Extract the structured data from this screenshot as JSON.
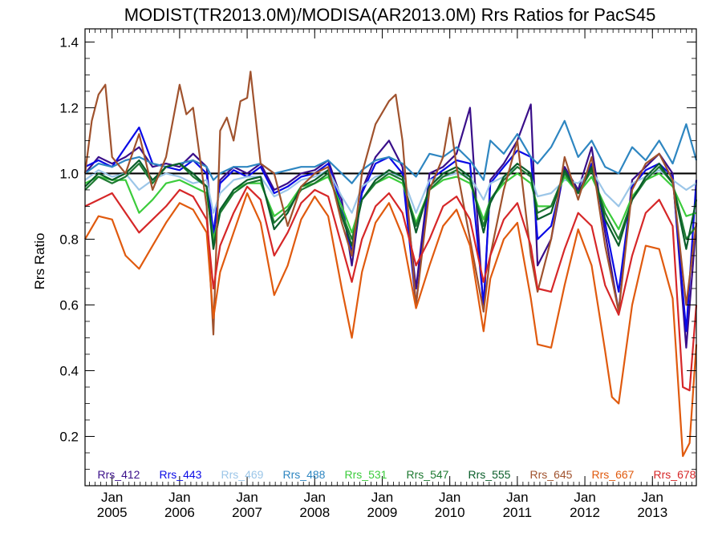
{
  "chart_data": {
    "type": "line",
    "title": "MODIST(TR2013.0M)/MODISA(AR2013.0M)  Rrs Ratios for PacS45",
    "ylabel": "Rrs Ratio",
    "xlabel": "",
    "ylim": [
      0.05,
      1.44
    ],
    "xlim": [
      2004.6,
      2013.65
    ],
    "y_ticks": [
      "0.2",
      "0.4",
      "0.6",
      "0.8",
      "1.0",
      "1.2",
      "1.4"
    ],
    "x_ticks": [
      {
        "month": "Jan",
        "year": "2005"
      },
      {
        "month": "Jan",
        "year": "2006"
      },
      {
        "month": "Jan",
        "year": "2007"
      },
      {
        "month": "Jan",
        "year": "2008"
      },
      {
        "month": "Jan",
        "year": "2009"
      },
      {
        "month": "Jan",
        "year": "2010"
      },
      {
        "month": "Jan",
        "year": "2011"
      },
      {
        "month": "Jan",
        "year": "2012"
      },
      {
        "month": "Jan",
        "year": "2013"
      }
    ],
    "reference_line": 1.0,
    "legend_position": "bottom",
    "series": [
      {
        "name": "Rrs_412",
        "color": "#3a0f8a",
        "x": [
          2004.6,
          2004.8,
          2005.0,
          2005.2,
          2005.4,
          2005.6,
          2005.8,
          2006.0,
          2006.2,
          2006.4,
          2006.5,
          2006.6,
          2006.8,
          2007.0,
          2007.2,
          2007.4,
          2007.6,
          2007.8,
          2008.0,
          2008.2,
          2008.4,
          2008.55,
          2008.7,
          2008.9,
          2009.1,
          2009.3,
          2009.5,
          2009.7,
          2009.9,
          2010.1,
          2010.3,
          2010.5,
          2010.6,
          2010.8,
          2011.0,
          2011.2,
          2011.3,
          2011.5,
          2011.7,
          2011.9,
          2012.1,
          2012.3,
          2012.5,
          2012.7,
          2012.9,
          2013.1,
          2013.3,
          2013.5,
          2013.65
        ],
        "y": [
          1.0,
          1.05,
          1.03,
          1.05,
          1.08,
          1.02,
          1.03,
          1.02,
          1.06,
          1.02,
          0.8,
          0.98,
          1.02,
          1.0,
          1.03,
          0.95,
          0.97,
          1.0,
          1.01,
          1.04,
          0.92,
          0.72,
          0.95,
          1.05,
          1.1,
          1.02,
          0.65,
          1.0,
          1.02,
          1.06,
          1.2,
          0.58,
          0.98,
          1.03,
          1.1,
          1.21,
          0.72,
          0.8,
          1.02,
          0.95,
          1.08,
          0.82,
          0.58,
          0.98,
          1.02,
          1.06,
          1.0,
          0.47,
          0.85
        ]
      },
      {
        "name": "Rrs_443",
        "color": "#0a0ae6",
        "x": [
          2004.6,
          2004.8,
          2005.0,
          2005.2,
          2005.4,
          2005.6,
          2005.8,
          2006.0,
          2006.2,
          2006.4,
          2006.5,
          2006.6,
          2006.8,
          2007.0,
          2007.2,
          2007.4,
          2007.6,
          2007.8,
          2008.0,
          2008.2,
          2008.4,
          2008.55,
          2008.7,
          2008.9,
          2009.1,
          2009.3,
          2009.5,
          2009.7,
          2009.9,
          2010.1,
          2010.3,
          2010.5,
          2010.6,
          2010.8,
          2011.0,
          2011.2,
          2011.3,
          2011.5,
          2011.7,
          2011.9,
          2012.1,
          2012.3,
          2012.5,
          2012.7,
          2012.9,
          2013.1,
          2013.3,
          2013.5,
          2013.65
        ],
        "y": [
          1.02,
          1.04,
          1.02,
          1.08,
          1.14,
          1.03,
          1.02,
          1.01,
          1.04,
          1.0,
          0.82,
          0.97,
          1.01,
          0.99,
          1.02,
          0.94,
          0.96,
          0.99,
          1.0,
          1.03,
          0.9,
          0.76,
          0.94,
          1.03,
          1.05,
          1.0,
          0.6,
          0.98,
          1.01,
          1.04,
          1.03,
          0.6,
          0.97,
          1.02,
          1.07,
          1.05,
          0.8,
          0.84,
          1.01,
          0.94,
          1.03,
          0.85,
          0.64,
          0.96,
          1.01,
          1.03,
          0.99,
          0.52,
          0.98
        ]
      },
      {
        "name": "Rrs_469",
        "color": "#9cc6e8",
        "x": [
          2004.6,
          2004.8,
          2005.0,
          2005.2,
          2005.4,
          2005.6,
          2005.8,
          2006.0,
          2006.2,
          2006.4,
          2006.5,
          2006.6,
          2006.8,
          2007.0,
          2007.2,
          2007.4,
          2007.6,
          2007.8,
          2008.0,
          2008.2,
          2008.4,
          2008.55,
          2008.7,
          2008.9,
          2009.1,
          2009.3,
          2009.5,
          2009.7,
          2009.9,
          2010.1,
          2010.3,
          2010.5,
          2010.6,
          2010.8,
          2011.0,
          2011.2,
          2011.3,
          2011.5,
          2011.7,
          2011.9,
          2012.1,
          2012.3,
          2012.5,
          2012.7,
          2012.9,
          2013.1,
          2013.3,
          2013.5,
          2013.65
        ],
        "y": [
          0.98,
          1.01,
          0.99,
          1.0,
          0.95,
          0.98,
          1.0,
          0.99,
          0.97,
          0.98,
          0.88,
          0.94,
          0.98,
          0.99,
          0.99,
          0.93,
          0.95,
          0.98,
          0.99,
          1.01,
          0.93,
          0.88,
          0.96,
          0.99,
          1.0,
          0.99,
          0.88,
          0.98,
          0.99,
          1.0,
          0.99,
          0.92,
          0.97,
          0.99,
          1.02,
          0.99,
          0.93,
          0.94,
          0.98,
          0.97,
          1.01,
          0.94,
          0.9,
          0.97,
          0.99,
          1.01,
          0.98,
          0.95,
          0.97
        ]
      },
      {
        "name": "Rrs_488",
        "color": "#2e86c1",
        "x": [
          2004.6,
          2004.8,
          2005.0,
          2005.2,
          2005.4,
          2005.6,
          2005.8,
          2006.0,
          2006.2,
          2006.4,
          2006.5,
          2006.6,
          2006.8,
          2007.0,
          2007.2,
          2007.4,
          2007.6,
          2007.8,
          2008.0,
          2008.2,
          2008.4,
          2008.55,
          2008.7,
          2008.9,
          2009.1,
          2009.3,
          2009.5,
          2009.7,
          2009.9,
          2010.1,
          2010.3,
          2010.5,
          2010.6,
          2010.8,
          2011.0,
          2011.2,
          2011.3,
          2011.5,
          2011.7,
          2011.9,
          2012.1,
          2012.3,
          2012.5,
          2012.7,
          2012.9,
          2013.1,
          2013.3,
          2013.5,
          2013.65
        ],
        "y": [
          1.0,
          1.03,
          1.02,
          1.04,
          1.05,
          1.03,
          1.02,
          1.03,
          1.04,
          1.02,
          0.98,
          1.0,
          1.02,
          1.02,
          1.03,
          1.0,
          1.01,
          1.02,
          1.02,
          1.04,
          1.0,
          0.97,
          1.01,
          1.04,
          1.05,
          1.03,
          0.99,
          1.06,
          1.05,
          1.08,
          1.04,
          0.98,
          1.1,
          1.06,
          1.12,
          1.05,
          1.03,
          1.08,
          1.16,
          1.05,
          1.1,
          1.02,
          1.0,
          1.08,
          1.04,
          1.1,
          1.03,
          1.15,
          1.04
        ]
      },
      {
        "name": "Rrs_531",
        "color": "#3ccc3c",
        "x": [
          2004.6,
          2004.8,
          2005.0,
          2005.2,
          2005.4,
          2005.6,
          2005.8,
          2006.0,
          2006.2,
          2006.4,
          2006.5,
          2006.6,
          2006.8,
          2007.0,
          2007.2,
          2007.4,
          2007.6,
          2007.8,
          2008.0,
          2008.2,
          2008.4,
          2008.55,
          2008.7,
          2008.9,
          2009.1,
          2009.3,
          2009.5,
          2009.7,
          2009.9,
          2010.1,
          2010.3,
          2010.5,
          2010.6,
          2010.8,
          2011.0,
          2011.2,
          2011.3,
          2011.5,
          2011.7,
          2011.9,
          2012.1,
          2012.3,
          2012.5,
          2012.7,
          2012.9,
          2013.1,
          2013.3,
          2013.5,
          2013.65
        ],
        "y": [
          0.97,
          0.99,
          0.98,
          0.98,
          0.88,
          0.92,
          0.97,
          0.98,
          0.96,
          0.94,
          0.8,
          0.88,
          0.95,
          0.97,
          0.97,
          0.87,
          0.9,
          0.96,
          0.97,
          0.99,
          0.9,
          0.82,
          0.92,
          0.97,
          0.99,
          0.97,
          0.85,
          0.95,
          0.98,
          0.99,
          0.97,
          0.86,
          0.92,
          0.97,
          1.0,
          0.97,
          0.9,
          0.9,
          0.99,
          0.94,
          0.99,
          0.9,
          0.83,
          0.93,
          0.98,
          1.0,
          0.96,
          0.87,
          0.88
        ]
      },
      {
        "name": "Rrs_547",
        "color": "#1e7a32",
        "x": [
          2004.6,
          2004.8,
          2005.0,
          2005.2,
          2005.4,
          2005.6,
          2005.8,
          2006.0,
          2006.2,
          2006.4,
          2006.5,
          2006.6,
          2006.8,
          2007.0,
          2007.2,
          2007.4,
          2007.6,
          2007.8,
          2008.0,
          2008.2,
          2008.4,
          2008.55,
          2008.7,
          2008.9,
          2009.1,
          2009.3,
          2009.5,
          2009.7,
          2009.9,
          2010.1,
          2010.3,
          2010.5,
          2010.6,
          2010.8,
          2011.0,
          2011.2,
          2011.3,
          2011.5,
          2011.7,
          2011.9,
          2012.1,
          2012.3,
          2012.5,
          2012.7,
          2012.9,
          2013.1,
          2013.3,
          2013.5,
          2013.65
        ],
        "y": [
          0.95,
          0.99,
          0.97,
          0.99,
          1.03,
          0.97,
          1.02,
          1.03,
          0.99,
          0.96,
          0.78,
          0.88,
          0.94,
          0.97,
          0.98,
          0.85,
          0.89,
          0.95,
          0.97,
          1.0,
          0.88,
          0.8,
          0.92,
          0.97,
          1.0,
          0.98,
          0.84,
          0.95,
          0.99,
          1.01,
          0.98,
          0.84,
          0.92,
          0.98,
          1.02,
          0.99,
          0.88,
          0.9,
          1.0,
          0.94,
          1.01,
          0.88,
          0.8,
          0.92,
          0.98,
          1.02,
          0.97,
          0.8,
          0.84
        ]
      },
      {
        "name": "Rrs_555",
        "color": "#0a5e2a",
        "x": [
          2004.6,
          2004.8,
          2005.0,
          2005.2,
          2005.4,
          2005.6,
          2005.8,
          2006.0,
          2006.2,
          2006.4,
          2006.5,
          2006.6,
          2006.8,
          2007.0,
          2007.2,
          2007.4,
          2007.6,
          2007.8,
          2008.0,
          2008.2,
          2008.4,
          2008.55,
          2008.7,
          2008.9,
          2009.1,
          2009.3,
          2009.5,
          2009.7,
          2009.9,
          2010.1,
          2010.3,
          2010.5,
          2010.6,
          2010.8,
          2011.0,
          2011.2,
          2011.3,
          2011.5,
          2011.7,
          2011.9,
          2012.1,
          2012.3,
          2012.5,
          2012.7,
          2012.9,
          2013.1,
          2013.3,
          2013.5,
          2013.65
        ],
        "y": [
          0.96,
          1.0,
          0.98,
          1.0,
          1.04,
          0.98,
          1.02,
          1.03,
          1.0,
          0.96,
          0.77,
          0.89,
          0.95,
          0.98,
          0.99,
          0.83,
          0.88,
          0.96,
          0.98,
          1.01,
          0.87,
          0.78,
          0.92,
          0.98,
          1.01,
          0.99,
          0.82,
          0.96,
          1.0,
          1.02,
          0.99,
          0.82,
          0.91,
          0.99,
          1.03,
          1.0,
          0.86,
          0.88,
          1.01,
          0.94,
          1.02,
          0.86,
          0.78,
          0.92,
          0.99,
          1.03,
          0.97,
          0.77,
          0.92
        ]
      },
      {
        "name": "Rrs_645",
        "color": "#a0522d",
        "x": [
          2004.6,
          2004.7,
          2004.8,
          2004.9,
          2005.0,
          2005.2,
          2005.4,
          2005.6,
          2005.8,
          2006.0,
          2006.1,
          2006.2,
          2006.3,
          2006.4,
          2006.5,
          2006.6,
          2006.7,
          2006.8,
          2006.9,
          2007.0,
          2007.05,
          2007.2,
          2007.4,
          2007.6,
          2007.8,
          2008.0,
          2008.2,
          2008.4,
          2008.55,
          2008.7,
          2008.9,
          2009.1,
          2009.2,
          2009.3,
          2009.5,
          2009.7,
          2009.9,
          2010.0,
          2010.1,
          2010.3,
          2010.5,
          2010.6,
          2010.8,
          2011.0,
          2011.2,
          2011.3,
          2011.5,
          2011.7,
          2011.9,
          2012.1,
          2012.3,
          2012.5,
          2012.7,
          2012.9,
          2013.1,
          2013.3,
          2013.5,
          2013.65
        ],
        "y": [
          1.0,
          1.16,
          1.24,
          1.27,
          1.05,
          1.0,
          1.12,
          0.95,
          1.05,
          1.27,
          1.18,
          1.2,
          1.05,
          0.9,
          0.51,
          1.13,
          1.17,
          1.1,
          1.22,
          1.23,
          1.31,
          1.03,
          1.0,
          0.84,
          0.96,
          1.0,
          1.02,
          0.85,
          0.75,
          1.0,
          1.15,
          1.22,
          1.24,
          1.1,
          0.6,
          0.95,
          1.05,
          1.17,
          1.02,
          0.8,
          0.58,
          0.75,
          0.95,
          1.1,
          0.75,
          0.64,
          0.8,
          1.05,
          0.92,
          1.05,
          0.78,
          0.58,
          0.95,
          1.03,
          1.06,
          0.98,
          0.6,
          0.85
        ]
      },
      {
        "name": "Rrs_667",
        "color": "#e05a0e",
        "x": [
          2004.6,
          2004.8,
          2005.0,
          2005.2,
          2005.4,
          2005.6,
          2005.8,
          2006.0,
          2006.2,
          2006.4,
          2006.5,
          2006.6,
          2006.8,
          2007.0,
          2007.2,
          2007.4,
          2007.6,
          2007.8,
          2008.0,
          2008.2,
          2008.4,
          2008.55,
          2008.7,
          2008.9,
          2009.1,
          2009.3,
          2009.5,
          2009.7,
          2009.9,
          2010.1,
          2010.3,
          2010.5,
          2010.6,
          2010.8,
          2011.0,
          2011.2,
          2011.3,
          2011.5,
          2011.7,
          2011.9,
          2012.1,
          2012.3,
          2012.4,
          2012.5,
          2012.7,
          2012.9,
          2013.1,
          2013.3,
          2013.45,
          2013.55,
          2013.65
        ],
        "y": [
          0.8,
          0.87,
          0.86,
          0.75,
          0.71,
          0.78,
          0.85,
          0.91,
          0.89,
          0.82,
          0.56,
          0.7,
          0.82,
          0.94,
          0.85,
          0.63,
          0.72,
          0.86,
          0.93,
          0.87,
          0.65,
          0.5,
          0.7,
          0.85,
          0.91,
          0.81,
          0.59,
          0.72,
          0.84,
          0.89,
          0.78,
          0.52,
          0.68,
          0.8,
          0.85,
          0.62,
          0.48,
          0.47,
          0.66,
          0.83,
          0.72,
          0.46,
          0.32,
          0.3,
          0.6,
          0.78,
          0.77,
          0.62,
          0.14,
          0.18,
          0.48
        ]
      },
      {
        "name": "Rrs_678",
        "color": "#d62728",
        "x": [
          2004.6,
          2004.8,
          2005.0,
          2005.2,
          2005.4,
          2005.6,
          2005.8,
          2006.0,
          2006.2,
          2006.4,
          2006.5,
          2006.6,
          2006.8,
          2007.0,
          2007.2,
          2007.4,
          2007.6,
          2007.8,
          2008.0,
          2008.2,
          2008.4,
          2008.55,
          2008.7,
          2008.9,
          2009.1,
          2009.3,
          2009.5,
          2009.7,
          2009.9,
          2010.1,
          2010.3,
          2010.5,
          2010.6,
          2010.8,
          2011.0,
          2011.2,
          2011.3,
          2011.5,
          2011.7,
          2011.9,
          2012.1,
          2012.3,
          2012.5,
          2012.7,
          2012.9,
          2013.1,
          2013.3,
          2013.45,
          2013.55,
          2013.65
        ],
        "y": [
          0.9,
          0.92,
          0.94,
          0.88,
          0.82,
          0.86,
          0.9,
          0.95,
          0.93,
          0.86,
          0.65,
          0.78,
          0.88,
          0.96,
          0.92,
          0.75,
          0.82,
          0.91,
          0.95,
          0.93,
          0.78,
          0.67,
          0.8,
          0.9,
          0.94,
          0.88,
          0.72,
          0.8,
          0.9,
          0.93,
          0.86,
          0.67,
          0.75,
          0.86,
          0.91,
          0.78,
          0.65,
          0.64,
          0.77,
          0.88,
          0.84,
          0.66,
          0.57,
          0.75,
          0.88,
          0.92,
          0.84,
          0.35,
          0.34,
          0.6
        ]
      }
    ]
  }
}
